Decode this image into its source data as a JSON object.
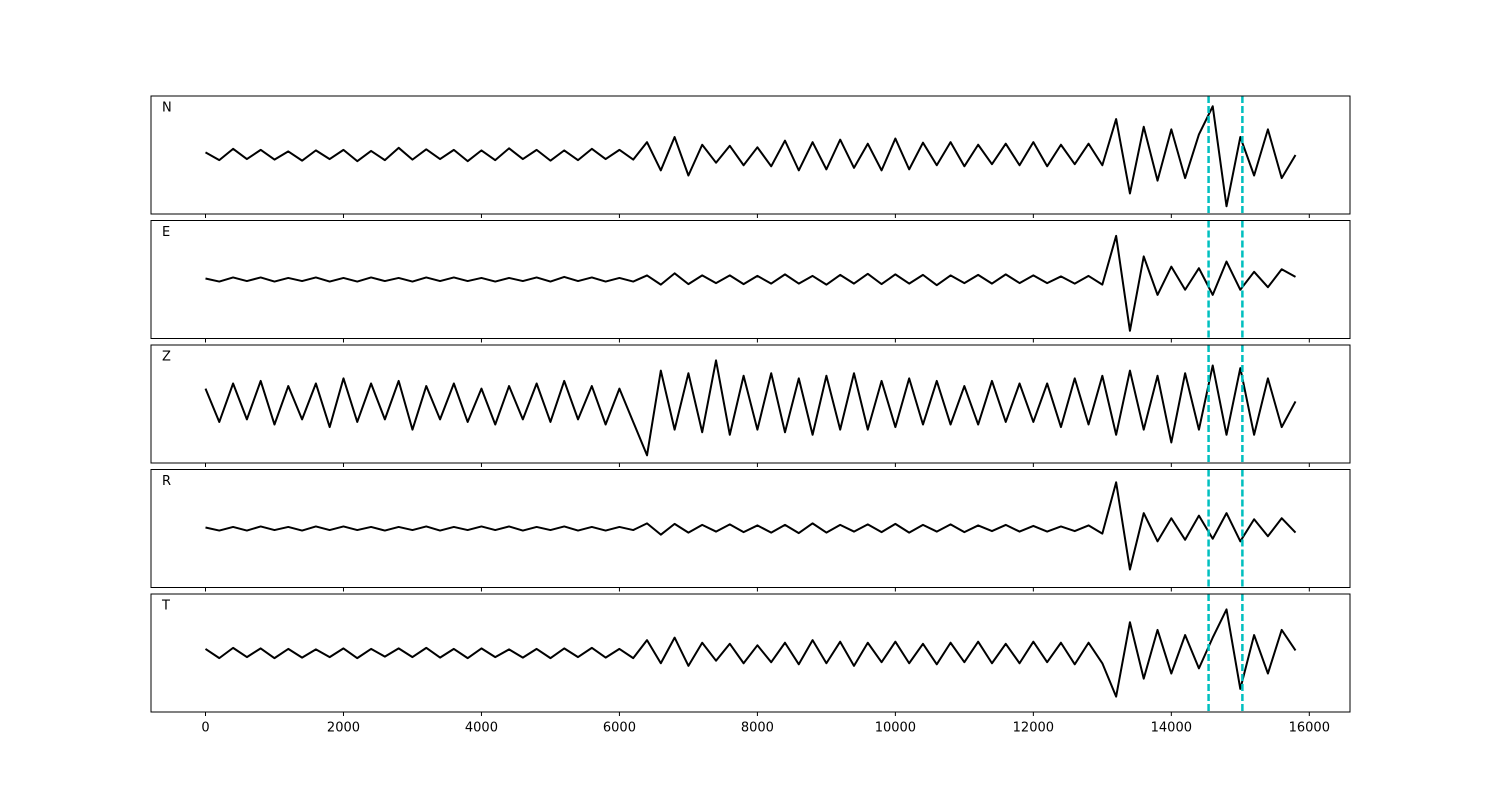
{
  "chart_data": {
    "type": "line",
    "x": [
      0,
      200,
      400,
      600,
      800,
      1000,
      1200,
      1400,
      1600,
      1800,
      2000,
      2200,
      2400,
      2600,
      2800,
      3000,
      3200,
      3400,
      3600,
      3800,
      4000,
      4200,
      4400,
      4600,
      4800,
      5000,
      5200,
      5400,
      5600,
      5800,
      6000,
      6200,
      6400,
      6600,
      6800,
      7000,
      7200,
      7400,
      7600,
      7800,
      8000,
      8200,
      8400,
      8600,
      8800,
      9000,
      9200,
      9400,
      9600,
      9800,
      10000,
      10200,
      10400,
      10600,
      10800,
      11000,
      11200,
      11400,
      11600,
      11800,
      12000,
      12200,
      12400,
      12600,
      12800,
      13000,
      13200,
      13400,
      13600,
      13800,
      14000,
      14200,
      14400,
      14600,
      14800,
      15000,
      15200,
      15400,
      15600,
      15800
    ],
    "xlim": [
      -790,
      16590
    ],
    "xticks": [
      0,
      2000,
      4000,
      6000,
      8000,
      10000,
      12000,
      14000,
      16000
    ],
    "ylim": [
      -1.15,
      1.15
    ],
    "vlines": [
      14540,
      15030
    ],
    "vline_color": "#00bfbf",
    "series": [
      {
        "name": "N",
        "color": "#000000",
        "values": [
          0.05,
          -0.1,
          0.12,
          -0.08,
          0.1,
          -0.09,
          0.07,
          -0.11,
          0.09,
          -0.08,
          0.1,
          -0.12,
          0.08,
          -0.1,
          0.14,
          -0.09,
          0.11,
          -0.08,
          0.1,
          -0.12,
          0.09,
          -0.1,
          0.13,
          -0.08,
          0.1,
          -0.11,
          0.09,
          -0.1,
          0.12,
          -0.08,
          0.1,
          -0.09,
          0.25,
          -0.3,
          0.35,
          -0.4,
          0.2,
          -0.15,
          0.18,
          -0.2,
          0.15,
          -0.22,
          0.28,
          -0.3,
          0.25,
          -0.28,
          0.3,
          -0.25,
          0.22,
          -0.3,
          0.32,
          -0.28,
          0.24,
          -0.2,
          0.25,
          -0.22,
          0.2,
          -0.18,
          0.22,
          -0.2,
          0.25,
          -0.22,
          0.2,
          -0.18,
          0.22,
          -0.2,
          0.7,
          -0.75,
          0.55,
          -0.5,
          0.5,
          -0.45,
          0.4,
          0.95,
          -1.0,
          0.35,
          -0.4,
          0.5,
          -0.45,
          0.0
        ]
      },
      {
        "name": "E",
        "color": "#000000",
        "values": [
          0.02,
          -0.04,
          0.04,
          -0.03,
          0.04,
          -0.04,
          0.03,
          -0.03,
          0.04,
          -0.04,
          0.03,
          -0.04,
          0.04,
          -0.03,
          0.03,
          -0.04,
          0.04,
          -0.03,
          0.04,
          -0.03,
          0.03,
          -0.04,
          0.03,
          -0.03,
          0.04,
          -0.04,
          0.05,
          -0.03,
          0.04,
          -0.04,
          0.03,
          -0.04,
          0.08,
          -0.1,
          0.12,
          -0.09,
          0.08,
          -0.07,
          0.08,
          -0.09,
          0.07,
          -0.08,
          0.1,
          -0.08,
          0.07,
          -0.1,
          0.09,
          -0.08,
          0.11,
          -0.09,
          0.1,
          -0.08,
          0.09,
          -0.11,
          0.08,
          -0.07,
          0.09,
          -0.08,
          0.1,
          -0.07,
          0.08,
          -0.07,
          0.06,
          -0.08,
          0.07,
          -0.1,
          0.85,
          -1.0,
          0.45,
          -0.3,
          0.25,
          -0.2,
          0.22,
          -0.3,
          0.35,
          -0.2,
          0.15,
          -0.15,
          0.2,
          0.05
        ]
      },
      {
        "name": "Z",
        "color": "#000000",
        "values": [
          0.3,
          -0.35,
          0.4,
          -0.3,
          0.45,
          -0.4,
          0.35,
          -0.3,
          0.4,
          -0.45,
          0.5,
          -0.35,
          0.4,
          -0.3,
          0.45,
          -0.5,
          0.35,
          -0.3,
          0.4,
          -0.35,
          0.3,
          -0.4,
          0.35,
          -0.3,
          0.4,
          -0.35,
          0.45,
          -0.3,
          0.35,
          -0.4,
          0.3,
          -0.35,
          -1.0,
          0.65,
          -0.5,
          0.6,
          -0.55,
          0.85,
          -0.6,
          0.55,
          -0.5,
          0.6,
          -0.55,
          0.5,
          -0.6,
          0.55,
          -0.5,
          0.6,
          -0.5,
          0.45,
          -0.45,
          0.5,
          -0.4,
          0.45,
          -0.4,
          0.35,
          -0.4,
          0.45,
          -0.35,
          0.4,
          -0.35,
          0.4,
          -0.45,
          0.5,
          -0.4,
          0.55,
          -0.6,
          0.65,
          -0.5,
          0.55,
          -0.75,
          0.6,
          -0.5,
          0.75,
          -0.6,
          0.7,
          -0.6,
          0.5,
          -0.45,
          0.05
        ]
      },
      {
        "name": "R",
        "color": "#000000",
        "values": [
          0.02,
          -0.04,
          0.03,
          -0.04,
          0.04,
          -0.03,
          0.03,
          -0.04,
          0.04,
          -0.03,
          0.04,
          -0.03,
          0.03,
          -0.04,
          0.03,
          -0.03,
          0.04,
          -0.04,
          0.03,
          -0.03,
          0.04,
          -0.03,
          0.04,
          -0.04,
          0.03,
          -0.03,
          0.04,
          -0.04,
          0.03,
          -0.04,
          0.03,
          -0.03,
          0.1,
          -0.12,
          0.09,
          -0.08,
          0.07,
          -0.06,
          0.08,
          -0.07,
          0.06,
          -0.08,
          0.07,
          -0.09,
          0.1,
          -0.08,
          0.07,
          -0.06,
          0.08,
          -0.07,
          0.09,
          -0.08,
          0.07,
          -0.06,
          0.08,
          -0.07,
          0.06,
          -0.05,
          0.07,
          -0.06,
          0.05,
          -0.06,
          0.04,
          -0.05,
          0.06,
          -0.1,
          0.9,
          -0.8,
          0.3,
          -0.25,
          0.2,
          -0.22,
          0.25,
          -0.2,
          0.3,
          -0.25,
          0.18,
          -0.15,
          0.2,
          -0.08
        ]
      },
      {
        "name": "T",
        "color": "#000000",
        "values": [
          0.08,
          -0.1,
          0.1,
          -0.08,
          0.09,
          -0.1,
          0.08,
          -0.09,
          0.07,
          -0.08,
          0.09,
          -0.1,
          0.08,
          -0.07,
          0.09,
          -0.08,
          0.1,
          -0.09,
          0.08,
          -0.1,
          0.09,
          -0.08,
          0.07,
          -0.09,
          0.08,
          -0.1,
          0.09,
          -0.08,
          0.1,
          -0.09,
          0.08,
          -0.1,
          0.25,
          -0.2,
          0.3,
          -0.25,
          0.2,
          -0.15,
          0.18,
          -0.2,
          0.15,
          -0.18,
          0.2,
          -0.22,
          0.25,
          -0.2,
          0.22,
          -0.25,
          0.2,
          -0.18,
          0.22,
          -0.2,
          0.18,
          -0.22,
          0.2,
          -0.18,
          0.22,
          -0.2,
          0.18,
          -0.2,
          0.22,
          -0.18,
          0.2,
          -0.22,
          0.2,
          -0.2,
          -0.85,
          0.6,
          -0.5,
          0.45,
          -0.4,
          0.35,
          -0.3,
          0.3,
          0.85,
          -0.7,
          0.35,
          -0.4,
          0.45,
          0.05
        ]
      }
    ]
  }
}
